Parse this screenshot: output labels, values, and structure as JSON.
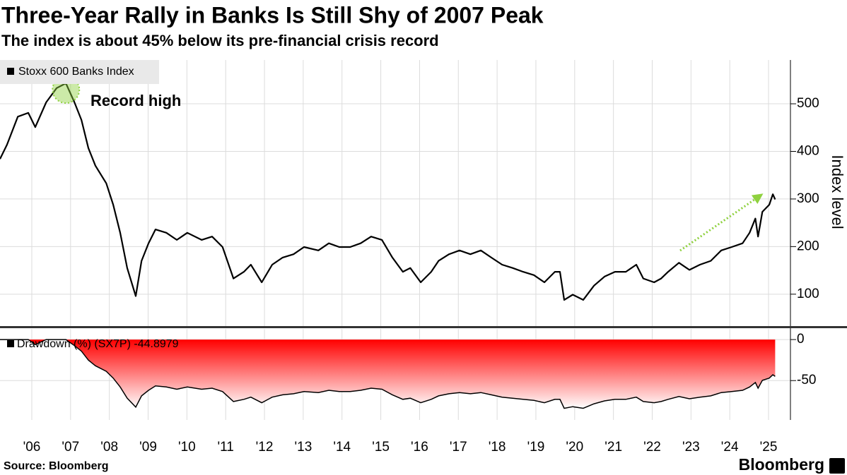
{
  "title": "Three-Year Rally in Banks Is Still Shy of 2007 Peak",
  "subtitle": "The index is about 45% below its pre-financial crisis record",
  "source": "Source: Bloomberg",
  "logo": "Bloomberg",
  "chart_data": [
    {
      "type": "line",
      "y_label": "Index level",
      "annotation": "Record high",
      "annotation_color": "#8fd13f",
      "legend": "top-left",
      "grid": true,
      "xlim": [
        2005.68,
        2026.01
      ],
      "ylim": [
        33,
        592
      ],
      "yticks": [
        100,
        200,
        300,
        400,
        500
      ],
      "series": [
        {
          "name": "Stoxx 600 Banks Index",
          "color": "#000000",
          "x": [
            2005.68,
            2005.86,
            2006.14,
            2006.41,
            2006.59,
            2006.87,
            2007.14,
            2007.38,
            2007.6,
            2007.78,
            2007.96,
            2008.14,
            2008.42,
            2008.6,
            2008.78,
            2008.96,
            2009.18,
            2009.33,
            2009.51,
            2009.69,
            2009.97,
            2010.24,
            2010.51,
            2010.88,
            2011.15,
            2011.42,
            2011.7,
            2011.97,
            2012.15,
            2012.43,
            2012.7,
            2012.97,
            2013.25,
            2013.52,
            2013.89,
            2014.16,
            2014.43,
            2014.71,
            2014.98,
            2015.25,
            2015.53,
            2015.8,
            2016.07,
            2016.26,
            2016.53,
            2016.8,
            2016.99,
            2017.26,
            2017.53,
            2017.81,
            2018.08,
            2018.35,
            2018.63,
            2018.9,
            2019.17,
            2019.45,
            2019.72,
            2019.99,
            2020.12,
            2020.23,
            2020.45,
            2020.72,
            2021.0,
            2021.27,
            2021.54,
            2021.82,
            2022.09,
            2022.27,
            2022.55,
            2022.73,
            2022.91,
            2023.19,
            2023.46,
            2023.73,
            2024.01,
            2024.28,
            2024.55,
            2024.83,
            2025.01,
            2025.16,
            2025.23,
            2025.34,
            2025.52,
            2025.61,
            2025.67
          ],
          "values": [
            384,
            414,
            473,
            481,
            451,
            503,
            533,
            543,
            503,
            466,
            407,
            370,
            333,
            288,
            229,
            155,
            96,
            170,
            207,
            236,
            229,
            214,
            229,
            214,
            221,
            199,
            133,
            147,
            162,
            125,
            162,
            177,
            184,
            199,
            192,
            207,
            199,
            199,
            207,
            221,
            214,
            177,
            147,
            155,
            125,
            147,
            170,
            184,
            192,
            184,
            192,
            177,
            162,
            155,
            147,
            140,
            125,
            147,
            147,
            88,
            99,
            88,
            118,
            137,
            147,
            147,
            162,
            133,
            125,
            133,
            147,
            166,
            151,
            162,
            170,
            192,
            199,
            207,
            229,
            259,
            221,
            273,
            288,
            310,
            299
          ]
        }
      ]
    },
    {
      "type": "area",
      "legend": "top-left",
      "grid": true,
      "xlim": [
        2005.68,
        2026.01
      ],
      "ylim": [
        -98,
        13
      ],
      "yticks": [
        0,
        -50
      ],
      "xticks": [
        {
          "value": 2006.5,
          "label": "'06"
        },
        {
          "value": 2007.5,
          "label": "'07"
        },
        {
          "value": 2008.5,
          "label": "'08"
        },
        {
          "value": 2009.5,
          "label": "'09"
        },
        {
          "value": 2010.5,
          "label": "'10"
        },
        {
          "value": 2011.5,
          "label": "'11"
        },
        {
          "value": 2012.5,
          "label": "'12"
        },
        {
          "value": 2013.5,
          "label": "'13"
        },
        {
          "value": 2014.5,
          "label": "'14"
        },
        {
          "value": 2015.5,
          "label": "'15"
        },
        {
          "value": 2016.5,
          "label": "'16"
        },
        {
          "value": 2017.5,
          "label": "'17"
        },
        {
          "value": 2018.5,
          "label": "'18"
        },
        {
          "value": 2019.5,
          "label": "'19"
        },
        {
          "value": 2020.5,
          "label": "'20"
        },
        {
          "value": 2021.5,
          "label": "'21"
        },
        {
          "value": 2022.5,
          "label": "'22"
        },
        {
          "value": 2023.5,
          "label": "'23"
        },
        {
          "value": 2024.5,
          "label": "'24"
        },
        {
          "value": 2025.5,
          "label": "'25"
        }
      ],
      "series": [
        {
          "name": "Drawdown (%) (SX7P) -44.8979",
          "color": "#ff0000",
          "x": [
            2005.68,
            2005.86,
            2006.14,
            2006.41,
            2006.59,
            2006.87,
            2007.14,
            2007.38,
            2007.6,
            2007.78,
            2007.96,
            2008.14,
            2008.42,
            2008.6,
            2008.78,
            2008.96,
            2009.18,
            2009.33,
            2009.51,
            2009.69,
            2009.97,
            2010.24,
            2010.51,
            2010.88,
            2011.15,
            2011.42,
            2011.7,
            2011.97,
            2012.15,
            2012.43,
            2012.7,
            2012.97,
            2013.25,
            2013.52,
            2013.89,
            2014.16,
            2014.43,
            2014.71,
            2014.98,
            2015.25,
            2015.53,
            2015.8,
            2016.07,
            2016.26,
            2016.53,
            2016.8,
            2016.99,
            2017.26,
            2017.53,
            2017.81,
            2018.08,
            2018.35,
            2018.63,
            2018.9,
            2019.17,
            2019.45,
            2019.72,
            2019.99,
            2020.12,
            2020.23,
            2020.45,
            2020.72,
            2021.0,
            2021.27,
            2021.54,
            2021.82,
            2022.09,
            2022.27,
            2022.55,
            2022.73,
            2022.91,
            2023.19,
            2023.46,
            2023.73,
            2024.01,
            2024.28,
            2024.55,
            2024.83,
            2025.01,
            2025.16,
            2025.23,
            2025.34,
            2025.52,
            2025.61,
            2025.67
          ],
          "values": [
            0,
            0,
            0,
            0,
            -6.2,
            0,
            0,
            0,
            -7.4,
            -14.2,
            -25,
            -31.9,
            -38.7,
            -47,
            -57.8,
            -71.5,
            -82.3,
            -68.7,
            -61.9,
            -56.5,
            -57.8,
            -60.6,
            -57.8,
            -60.6,
            -59.3,
            -63.4,
            -75.5,
            -72.9,
            -70.2,
            -77,
            -70.2,
            -67.4,
            -66.1,
            -63.4,
            -64.6,
            -61.9,
            -63.4,
            -63.4,
            -61.9,
            -59.3,
            -60.6,
            -67.4,
            -72.9,
            -71.5,
            -77,
            -72.9,
            -68.7,
            -66.1,
            -64.6,
            -66.1,
            -64.6,
            -67.4,
            -70.2,
            -71.5,
            -72.9,
            -74.2,
            -77,
            -72.9,
            -72.9,
            -83.8,
            -81.8,
            -83.8,
            -78.3,
            -74.8,
            -72.9,
            -72.9,
            -70.2,
            -75.5,
            -77,
            -75.5,
            -72.9,
            -69.4,
            -72.2,
            -70.2,
            -68.7,
            -64.6,
            -63.4,
            -61.9,
            -57.8,
            -52.3,
            -59.3,
            -49.7,
            -47,
            -42.9,
            -44.8979
          ]
        }
      ]
    }
  ]
}
